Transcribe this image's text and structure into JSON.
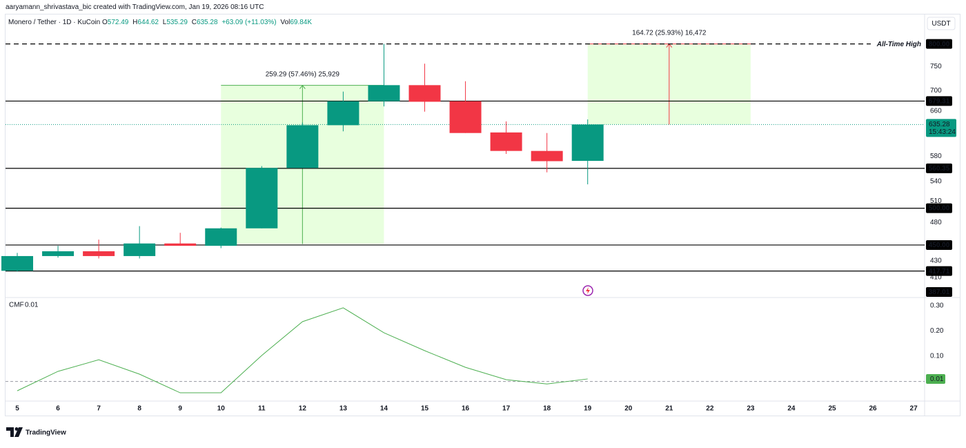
{
  "header": "aaryamann_shrivastava_bic created with TradingView.com, Jan 19, 2026 08:16 UTC",
  "chart_data": {
    "type": "candlestick",
    "title": "Monero / Tether · 1D · KuCoin",
    "quote_labels": [
      "O",
      "H",
      "L",
      "C"
    ],
    "change": "+63.09 (+11.03%)",
    "volume_label": "Vol",
    "volume": "69.84K",
    "currency": "USDT",
    "categories": [
      "5",
      "6",
      "7",
      "8",
      "9",
      "10",
      "11",
      "12",
      "13",
      "14",
      "15",
      "16",
      "17",
      "18",
      "19",
      "20",
      "21",
      "22",
      "23",
      "24",
      "25",
      "26",
      "27"
    ],
    "open": [
      418,
      436,
      442,
      436,
      452,
      449,
      472,
      561,
      634,
      679,
      711,
      679,
      621,
      589,
      572.49,
      null,
      null,
      null,
      null,
      null,
      null,
      null,
      null
    ],
    "high": [
      440,
      449,
      457,
      475,
      466,
      473,
      564,
      639,
      698,
      800,
      756,
      719,
      641,
      620,
      644.62,
      null,
      null,
      null,
      null,
      null,
      null,
      null,
      null
    ],
    "low": [
      417,
      434,
      433,
      433,
      449,
      446,
      472,
      561,
      623,
      669,
      659,
      620,
      584,
      554,
      535.29,
      null,
      null,
      null,
      null,
      null,
      null,
      null,
      null
    ],
    "close": [
      436,
      442,
      436,
      452,
      449,
      472,
      561,
      634,
      679,
      711,
      678,
      620,
      589,
      572,
      635.28,
      null,
      null,
      null,
      null,
      null,
      null,
      null,
      null
    ],
    "up_color": "#089981",
    "down_color": "#f23645",
    "log": true,
    "ylim": [
      388,
      872
    ],
    "yticks": [
      750,
      700,
      660,
      580,
      540,
      510,
      480,
      430,
      410
    ],
    "levels": [
      {
        "value": 800,
        "label": "800.00",
        "line": "dashed",
        "note": "All-Time High"
      },
      {
        "value": 679.31,
        "line": "solid"
      },
      {
        "value": 560.35,
        "line": "solid"
      },
      {
        "value": 500,
        "label": "500.00",
        "line": "solid"
      },
      {
        "value": 450,
        "label": "450.00",
        "line": "solid"
      },
      {
        "value": 417.71,
        "line": "solid"
      },
      {
        "value": 387.01,
        "line": null
      }
    ],
    "countdown": "15:43:24",
    "measures": [
      {
        "from": 451.25,
        "to": 710.54,
        "x_from": "10",
        "x_to": "14",
        "label": "259.29 (57.46%) 25,929",
        "color": "#4caf50"
      },
      {
        "from": 635.25,
        "to": 799.97,
        "x_from": "19",
        "x_to": "23",
        "label": "164.72 (25.93%) 16,472",
        "color": "#f23645"
      }
    ],
    "cmf": {
      "type": "line",
      "title": "CMF",
      "color": "#4caf50",
      "values": [
        -0.037,
        0.04,
        0.086,
        0.029,
        -0.045,
        -0.045,
        0.103,
        0.237,
        0.292,
        0.193,
        0.122,
        0.056,
        0.007,
        -0.01,
        0.01,
        null,
        null,
        null,
        null,
        null,
        null,
        null,
        null
      ],
      "ylim": [
        -0.075,
        0.33
      ],
      "yticks": [
        {
          "value": 0.3,
          "label": "0.30"
        },
        {
          "value": 0.2,
          "label": "0.20"
        },
        {
          "value": 0.1,
          "label": "0.10"
        }
      ],
      "baseline": 0
    }
  },
  "brand": "TradingView"
}
